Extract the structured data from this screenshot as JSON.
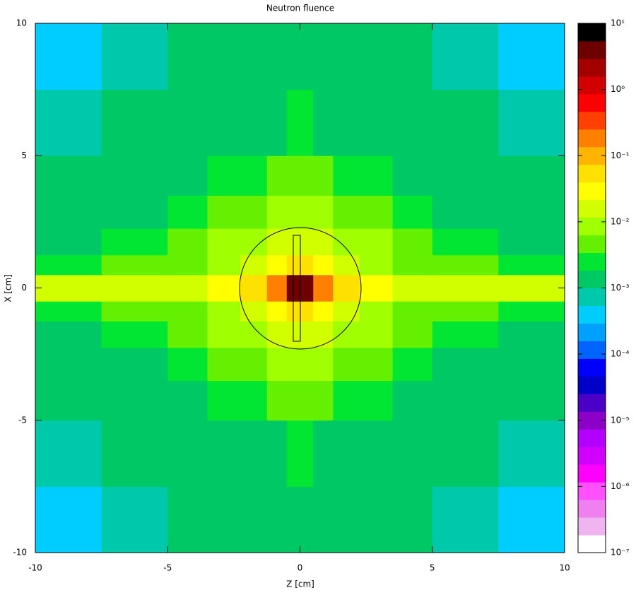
{
  "chart_data": {
    "type": "heatmap",
    "title": "Neutron fluence",
    "xlabel": "Z [cm]",
    "ylabel": "X [cm]",
    "xlim": [
      -10,
      10
    ],
    "ylim": [
      -10,
      10
    ],
    "xticks": [
      -10,
      -5,
      0,
      5,
      10
    ],
    "yticks": [
      -10,
      -5,
      0,
      5,
      10
    ],
    "xbins": [
      -10,
      -7.5,
      -5,
      -3.5,
      -2.25,
      -1.25,
      -0.5,
      0.5,
      1.25,
      2.25,
      3.5,
      5,
      7.5,
      10
    ],
    "ybins": [
      -10,
      -7.5,
      -5,
      -3.5,
      -2.25,
      -1.25,
      -0.5,
      0.5,
      1.25,
      2.25,
      3.5,
      5,
      7.5,
      10
    ],
    "values": [
      [
        0.00045,
        0.0008,
        0.0011,
        0.0013,
        0.0014,
        0.0015,
        0.0016,
        0.0015,
        0.0014,
        0.0013,
        0.0011,
        0.0008,
        0.00045
      ],
      [
        0.0007,
        0.001,
        0.0013,
        0.0015,
        0.0017,
        0.0018,
        0.0019,
        0.0018,
        0.0017,
        0.0015,
        0.0013,
        0.001,
        0.0007
      ],
      [
        0.001,
        0.0013,
        0.0018,
        0.0023,
        0.003,
        0.0035,
        0.004,
        0.0035,
        0.003,
        0.0023,
        0.0018,
        0.0013,
        0.001
      ],
      [
        0.0013,
        0.0018,
        0.0026,
        0.004,
        0.0055,
        0.007,
        0.008,
        0.007,
        0.0055,
        0.004,
        0.0026,
        0.0018,
        0.0013
      ],
      [
        0.0018,
        0.0025,
        0.004,
        0.0065,
        0.01,
        0.014,
        0.017,
        0.014,
        0.01,
        0.0065,
        0.004,
        0.0025,
        0.0018
      ],
      [
        0.0025,
        0.0035,
        0.006,
        0.01,
        0.02,
        0.03,
        0.04,
        0.03,
        0.02,
        0.01,
        0.006,
        0.0035,
        0.0025
      ],
      [
        0.012,
        0.015,
        0.02,
        0.03,
        0.06,
        0.2,
        3,
        0.2,
        0.06,
        0.03,
        0.02,
        0.015,
        0.012
      ],
      [
        0.0025,
        0.0035,
        0.006,
        0.01,
        0.02,
        0.03,
        0.04,
        0.03,
        0.02,
        0.01,
        0.006,
        0.0035,
        0.0025
      ],
      [
        0.0018,
        0.0025,
        0.004,
        0.0065,
        0.01,
        0.014,
        0.017,
        0.014,
        0.01,
        0.0065,
        0.004,
        0.0025,
        0.0018
      ],
      [
        0.0013,
        0.0018,
        0.0026,
        0.004,
        0.0055,
        0.007,
        0.008,
        0.007,
        0.0055,
        0.004,
        0.0026,
        0.0018,
        0.0013
      ],
      [
        0.001,
        0.0013,
        0.0018,
        0.0023,
        0.003,
        0.0035,
        0.004,
        0.0035,
        0.003,
        0.0023,
        0.0018,
        0.0013,
        0.001
      ],
      [
        0.0007,
        0.001,
        0.0013,
        0.0015,
        0.0017,
        0.0018,
        0.0019,
        0.0018,
        0.0017,
        0.0015,
        0.0013,
        0.001,
        0.0007
      ],
      [
        0.00045,
        0.0008,
        0.0011,
        0.0013,
        0.0014,
        0.0015,
        0.0016,
        0.0015,
        0.0014,
        0.0013,
        0.0011,
        0.0008,
        0.00045
      ]
    ],
    "colorbar": {
      "scale": "log",
      "lim": [
        1e-07,
        10
      ],
      "ticks": [
        {
          "value": 1e-07,
          "label": "10⁻⁷"
        },
        {
          "value": 1e-06,
          "label": "10⁻⁶"
        },
        {
          "value": 1e-05,
          "label": "10⁻⁵"
        },
        {
          "value": 0.0001,
          "label": "10⁻⁴"
        },
        {
          "value": 0.001,
          "label": "10⁻³"
        },
        {
          "value": 0.01,
          "label": "10⁻²"
        },
        {
          "value": 0.1,
          "label": "10⁻¹"
        },
        {
          "value": 1,
          "label": "10⁰"
        },
        {
          "value": 10,
          "label": "10¹"
        }
      ],
      "colors": [
        "#ffffff",
        "#f0b4f0",
        "#f080f0",
        "#ff50ff",
        "#ff00ff",
        "#d200ff",
        "#b400ff",
        "#8c00c8",
        "#4b00c8",
        "#0000c8",
        "#0000ff",
        "#0064ff",
        "#00a0ff",
        "#00cdff",
        "#00c8aa",
        "#00c864",
        "#00e632",
        "#64f000",
        "#a0ff00",
        "#d2ff00",
        "#ffff00",
        "#ffe100",
        "#ffb400",
        "#ff8000",
        "#ff4000",
        "#ff0000",
        "#d20000",
        "#a50000",
        "#6e0000",
        "#000000"
      ]
    }
  }
}
